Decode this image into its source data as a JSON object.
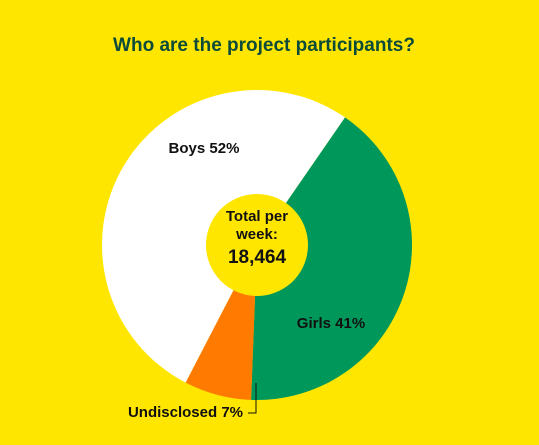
{
  "chart_data": {
    "type": "donut",
    "title": "Who are the project participants?",
    "categories": [
      "Boys",
      "Girls",
      "Undisclosed"
    ],
    "values": [
      52,
      41,
      7
    ],
    "value_labels": [
      "52%",
      "41%",
      "7%"
    ],
    "colors": [
      "#ffffff",
      "#00985a",
      "#ff7a00"
    ],
    "center_label": "Total per week:",
    "total": {
      "value": 18464,
      "label": "18,464"
    }
  }
}
